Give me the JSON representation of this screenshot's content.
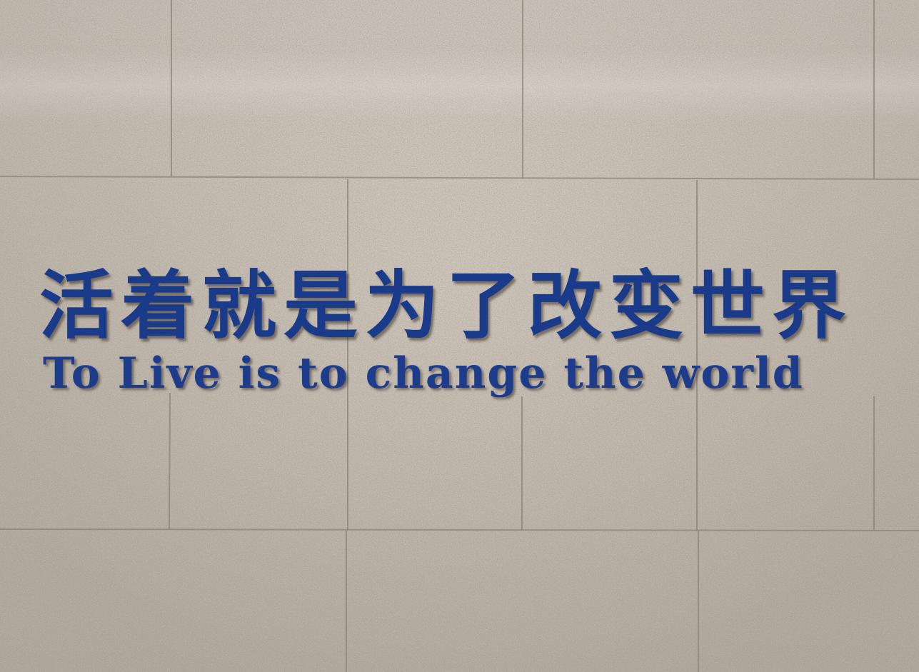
{
  "scene": {
    "description_colors": {
      "wall": "#c9bfb3",
      "letters": "#1a3a8a",
      "seam": "#8d8479"
    }
  },
  "sign": {
    "chinese_line": "活着就是为了改变世界",
    "english_line": "To Live is to change the world"
  }
}
